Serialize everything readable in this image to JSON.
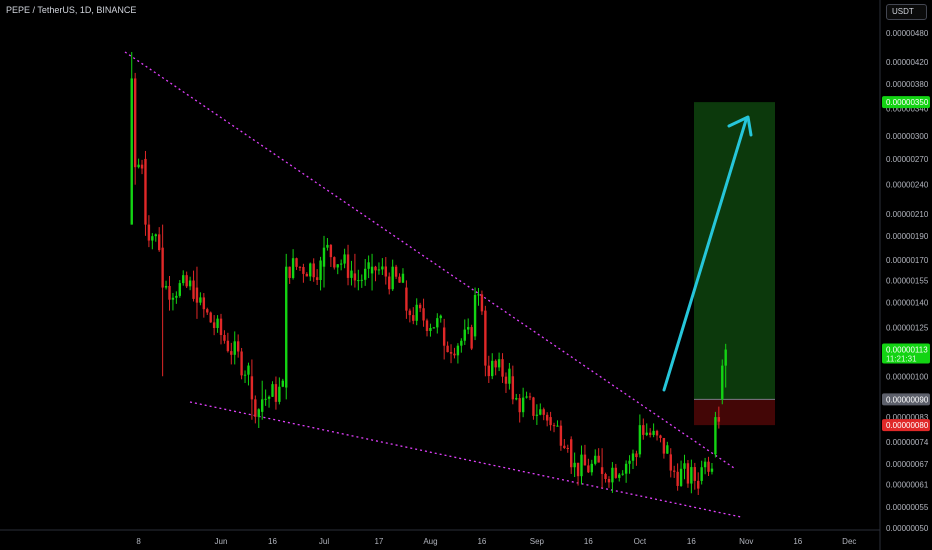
{
  "header": {
    "title": "PEPE / TetherUS, 1D, BINANCE",
    "currency_label": "USDT"
  },
  "colors": {
    "up": "#13d413",
    "down": "#e02828",
    "trendline": "#e040fb",
    "arrow": "#26c6da",
    "target_zone": "#0d3f0d",
    "stop_zone": "#4a0707"
  },
  "chart_data": {
    "type": "candlestick",
    "symbol": "PEPE / TetherUS",
    "interval": "1D",
    "exchange": "BINANCE",
    "y_scale": "log",
    "y_ticks": [
      "0.00000480",
      "0.00000420",
      "0.00000380",
      "0.00000340",
      "0.00000300",
      "0.00000270",
      "0.00000240",
      "0.00000210",
      "0.00000190",
      "0.00000170",
      "0.00000155",
      "0.00000140",
      "0.00000125",
      "0.00000100",
      "0.00000083",
      "0.00000074",
      "0.00000067",
      "0.00000061",
      "0.00000055",
      "0.00000050"
    ],
    "x_ticks": [
      "8",
      "Jun",
      "16",
      "Jul",
      "17",
      "Aug",
      "16",
      "Sep",
      "16",
      "Oct",
      "16",
      "Nov",
      "16",
      "Dec"
    ],
    "price_tags": [
      {
        "label": "0.00000350",
        "role": "target",
        "color": "#13d413"
      },
      {
        "label": "0.00000113",
        "sublabel": "11:21:31",
        "role": "last-price",
        "color": "#13d413"
      },
      {
        "label": "0.00000090",
        "role": "entry",
        "color": "#5d606b"
      },
      {
        "label": "0.00000080",
        "role": "stop",
        "color": "#e02828"
      }
    ],
    "candles_ohlc_approx": [
      {
        "date": "2023-05-06",
        "open": 2e-06,
        "high": 4.4e-06,
        "low": 2e-06,
        "close": 3.9e-06
      },
      {
        "date": "2023-05-07",
        "open": 3.9e-06,
        "high": 4e-06,
        "low": 2.4e-06,
        "close": 2.6e-06
      },
      {
        "date": "2023-05-10",
        "open": 2.7e-06,
        "high": 2.8e-06,
        "low": 1.9e-06,
        "close": 2e-06
      },
      {
        "date": "2023-05-15",
        "open": 1.8e-06,
        "high": 2e-06,
        "low": 1e-06,
        "close": 1.5e-06
      },
      {
        "date": "2023-05-25",
        "open": 1.5e-06,
        "high": 1.65e-06,
        "low": 1.3e-06,
        "close": 1.4e-06
      },
      {
        "date": "2023-06-10",
        "open": 1e-06,
        "high": 1.08e-06,
        "low": 8.2e-07,
        "close": 9e-07
      },
      {
        "date": "2023-06-13",
        "open": 8.5e-07,
        "high": 9.8e-07,
        "low": 8.2e-07,
        "close": 9e-07
      },
      {
        "date": "2023-06-20",
        "open": 9.5e-07,
        "high": 1.75e-06,
        "low": 9e-07,
        "close": 1.65e-06
      },
      {
        "date": "2023-07-01",
        "open": 1.65e-06,
        "high": 1.9e-06,
        "low": 1.5e-06,
        "close": 1.8e-06
      },
      {
        "date": "2023-07-10",
        "open": 1.6e-06,
        "high": 1.75e-06,
        "low": 1.5e-06,
        "close": 1.55e-06
      },
      {
        "date": "2023-07-15",
        "open": 1.6e-06,
        "high": 1.75e-06,
        "low": 1.48e-06,
        "close": 1.65e-06
      },
      {
        "date": "2023-07-25",
        "open": 1.5e-06,
        "high": 1.55e-06,
        "low": 1.3e-06,
        "close": 1.35e-06
      },
      {
        "date": "2023-08-05",
        "open": 1.25e-06,
        "high": 1.3e-06,
        "low": 1.08e-06,
        "close": 1.15e-06
      },
      {
        "date": "2023-08-14",
        "open": 1.2e-06,
        "high": 1.5e-06,
        "low": 1.18e-06,
        "close": 1.45e-06
      },
      {
        "date": "2023-08-17",
        "open": 1.35e-06,
        "high": 1.38e-06,
        "low": 1e-06,
        "close": 1.05e-06
      },
      {
        "date": "2023-08-25",
        "open": 1e-06,
        "high": 1.05e-06,
        "low": 8.8e-07,
        "close": 9e-07
      },
      {
        "date": "2023-09-05",
        "open": 8.3e-07,
        "high": 8.5e-07,
        "low": 7.8e-07,
        "close": 8e-07
      },
      {
        "date": "2023-09-11",
        "open": 7.5e-07,
        "high": 7.6e-07,
        "low": 6.4e-07,
        "close": 6.6e-07
      },
      {
        "date": "2023-09-20",
        "open": 6.6e-07,
        "high": 7.2e-07,
        "low": 6e-07,
        "close": 6.4e-07
      },
      {
        "date": "2023-10-01",
        "open": 7e-07,
        "high": 8.4e-07,
        "low": 6.9e-07,
        "close": 8e-07
      },
      {
        "date": "2023-10-10",
        "open": 7e-07,
        "high": 7.2e-07,
        "low": 6.3e-07,
        "close": 6.5e-07
      },
      {
        "date": "2023-10-19",
        "open": 6.2e-07,
        "high": 6.8e-07,
        "low": 6.1e-07,
        "close": 6.6e-07
      },
      {
        "date": "2023-10-23",
        "open": 7e-07,
        "high": 8.5e-07,
        "low": 6.9e-07,
        "close": 8.3e-07
      },
      {
        "date": "2023-10-25",
        "open": 9e-07,
        "high": 1.08e-06,
        "low": 8.8e-07,
        "close": 1.05e-06
      },
      {
        "date": "2023-10-26",
        "open": 1.05e-06,
        "high": 1.16e-06,
        "low": 9.5e-07,
        "close": 1.13e-06
      }
    ]
  }
}
